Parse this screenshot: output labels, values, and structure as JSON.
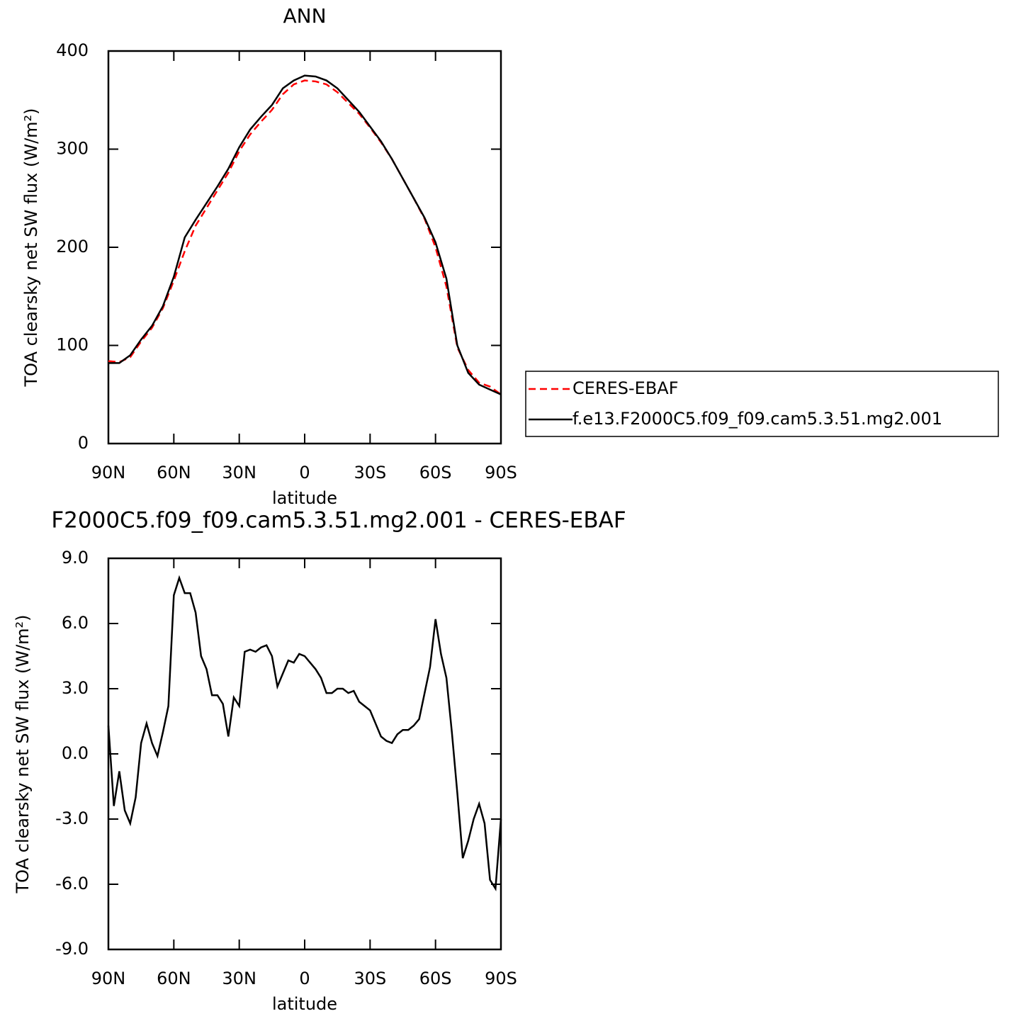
{
  "chart_data": [
    {
      "type": "line",
      "title": "ANN",
      "xlabel": "latitude",
      "ylabel": "TOA clearsky net SW flux (W/m²)",
      "x": [
        90,
        85,
        80,
        75,
        70,
        65,
        60,
        55,
        50,
        45,
        40,
        35,
        30,
        25,
        20,
        15,
        10,
        5,
        0,
        -5,
        -10,
        -15,
        -20,
        -25,
        -30,
        -35,
        -40,
        -45,
        -50,
        -55,
        -60,
        -65,
        -70,
        -75,
        -80,
        -85,
        -90
      ],
      "series": [
        {
          "name": "CERES-EBAF",
          "color": "#ff0000",
          "dashed": true,
          "values": [
            84,
            83,
            88,
            104,
            118,
            138,
            166,
            196,
            222,
            240,
            258,
            276,
            298,
            315,
            328,
            340,
            356,
            366,
            370,
            369,
            366,
            358,
            347,
            336,
            322,
            307,
            290,
            270,
            250,
            229,
            200,
            160,
            98,
            75,
            62,
            58,
            50
          ]
        },
        {
          "name": "f.e13.F2000C5.f09_f09.cam5.3.51.mg2.001",
          "color": "#000000",
          "dashed": false,
          "values": [
            82,
            82,
            90,
            106,
            120,
            140,
            170,
            210,
            228,
            245,
            262,
            280,
            302,
            320,
            333,
            345,
            362,
            370,
            375,
            374,
            370,
            362,
            350,
            338,
            323,
            308,
            290,
            270,
            250,
            230,
            205,
            168,
            100,
            72,
            60,
            55,
            50
          ]
        }
      ],
      "xlim": [
        90,
        -90
      ],
      "xticks": [
        {
          "value": 90,
          "label": "90N"
        },
        {
          "value": 60,
          "label": "60N"
        },
        {
          "value": 30,
          "label": "30N"
        },
        0,
        {
          "value": -30,
          "label": "30S"
        },
        {
          "value": -60,
          "label": "60S"
        },
        {
          "value": -90,
          "label": "90S"
        }
      ],
      "ylim": [
        0,
        400
      ],
      "yticks": [
        0,
        100,
        200,
        300,
        400
      ],
      "legend": "right"
    },
    {
      "type": "line",
      "title": "F2000C5.f09_f09.cam5.3.51.mg2.001 - CERES-EBAF",
      "xlabel": "latitude",
      "ylabel": "TOA clearsky net SW flux (W/m²)",
      "x": [
        90,
        87.5,
        85,
        82.5,
        80,
        77.5,
        75,
        72.5,
        70,
        67.5,
        65,
        62.5,
        60,
        57.5,
        55,
        52.5,
        50,
        47.5,
        45,
        42.5,
        40,
        37.5,
        35,
        32.5,
        30,
        27.5,
        25,
        22.5,
        20,
        17.5,
        15,
        12.5,
        10,
        7.5,
        5,
        2.5,
        0,
        -2.5,
        -5,
        -7.5,
        -10,
        -12.5,
        -15,
        -17.5,
        -20,
        -22.5,
        -25,
        -27.5,
        -30,
        -32.5,
        -35,
        -37.5,
        -40,
        -42.5,
        -45,
        -47.5,
        -50,
        -52.5,
        -55,
        -57.5,
        -60,
        -62.5,
        -65,
        -67.5,
        -70,
        -72.5,
        -75,
        -77.5,
        -80,
        -82.5,
        -85,
        -87.5,
        -90
      ],
      "series": [
        {
          "color": "#000000",
          "dashed": false,
          "values": [
            1.3,
            -2.4,
            -0.8,
            -2.6,
            -3.2,
            -2.0,
            0.5,
            1.4,
            0.5,
            -0.1,
            1.0,
            2.2,
            7.3,
            8.1,
            7.4,
            7.4,
            6.5,
            4.5,
            3.9,
            2.7,
            2.7,
            2.3,
            0.8,
            2.6,
            2.2,
            4.7,
            4.8,
            4.7,
            4.9,
            5.0,
            4.5,
            3.1,
            3.7,
            4.3,
            4.2,
            4.6,
            4.5,
            4.2,
            3.9,
            3.5,
            2.8,
            2.8,
            3.0,
            3.0,
            2.8,
            2.9,
            2.4,
            2.2,
            2.0,
            1.4,
            0.8,
            0.6,
            0.5,
            0.9,
            1.1,
            1.1,
            1.3,
            1.6,
            2.8,
            4.0,
            6.2,
            4.6,
            3.5,
            1.0,
            -1.8,
            -4.8,
            -4.0,
            -3.0,
            -2.3,
            -3.2,
            -5.8,
            -6.2,
            -3.0
          ]
        }
      ],
      "xlim": [
        90,
        -90
      ],
      "xticks": [
        {
          "value": 90,
          "label": "90N"
        },
        {
          "value": 60,
          "label": "60N"
        },
        {
          "value": 30,
          "label": "30N"
        },
        0,
        {
          "value": -30,
          "label": "30S"
        },
        {
          "value": -60,
          "label": "60S"
        },
        {
          "value": -90,
          "label": "90S"
        }
      ],
      "ylim": [
        -9,
        9
      ],
      "yticks": [
        {
          "value": -9,
          "label": "-9.0"
        },
        {
          "value": -6,
          "label": "-6.0"
        },
        {
          "value": -3,
          "label": "-3.0"
        },
        {
          "value": 0,
          "label": "0.0"
        },
        {
          "value": 3,
          "label": "3.0"
        },
        {
          "value": 6,
          "label": "6.0"
        },
        {
          "value": 9,
          "label": "9.0"
        }
      ]
    }
  ]
}
